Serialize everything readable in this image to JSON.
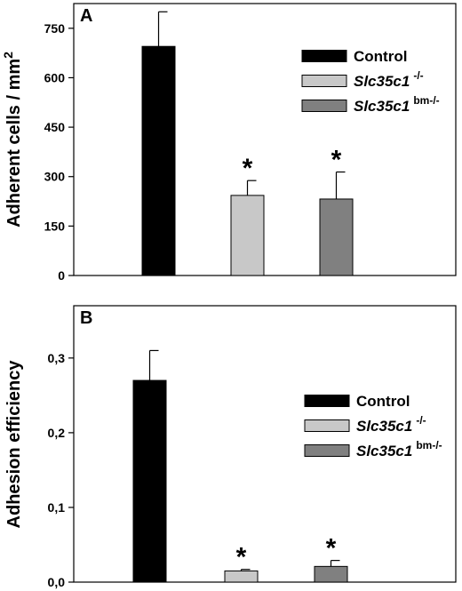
{
  "chart_data": [
    {
      "panel": "A",
      "type": "bar",
      "ylabel": "Adherent cells / mm",
      "ylabel_sup": "2",
      "ylim": [
        0,
        825
      ],
      "yticks": [
        "0",
        "150",
        "300",
        "450",
        "600",
        "750"
      ],
      "ytick_values": [
        0,
        150,
        300,
        450,
        600,
        750
      ],
      "grid": false,
      "legend_position": "top-right",
      "series": [
        {
          "name": "Control",
          "name_sup": "",
          "value": 695,
          "error": 105,
          "significance": "",
          "color": "#000000"
        },
        {
          "name": "Slc35c1",
          "name_sup": "-/-",
          "value": 243,
          "error": 45,
          "significance": "*",
          "color": "#c8c8c8"
        },
        {
          "name": "Slc35c1",
          "name_sup": "bm-/-",
          "value": 232,
          "error": 82,
          "significance": "*",
          "color": "#808080"
        }
      ]
    },
    {
      "panel": "B",
      "type": "bar",
      "ylabel": "Adhesion efficiency",
      "ylabel_sup": "",
      "ylim": [
        0,
        0.37
      ],
      "yticks": [
        "0,0",
        "0,1",
        "0,2",
        "0,3"
      ],
      "ytick_values": [
        0,
        0.1,
        0.2,
        0.3
      ],
      "grid": false,
      "legend_position": "top-right",
      "series": [
        {
          "name": "Control",
          "name_sup": "",
          "value": 0.27,
          "error": 0.04,
          "significance": "",
          "color": "#000000"
        },
        {
          "name": "Slc35c1",
          "name_sup": "-/-",
          "value": 0.015,
          "error": 0.002,
          "significance": "*",
          "color": "#c8c8c8"
        },
        {
          "name": "Slc35c1",
          "name_sup": "bm-/-",
          "value": 0.021,
          "error": 0.008,
          "significance": "*",
          "color": "#808080"
        }
      ]
    }
  ]
}
